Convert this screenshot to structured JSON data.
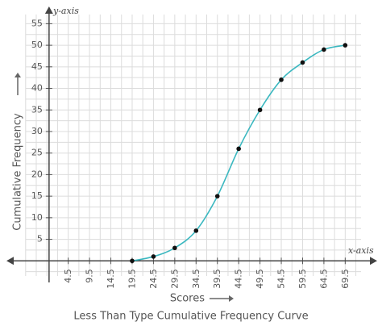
{
  "chart_data": {
    "type": "line",
    "title": "Less Than Type Cumulative Frequency Curve",
    "x_label": "Scores",
    "y_label": "Cumulative Frequency",
    "x_axis_name": "x-axis",
    "y_axis_name": "y-axis",
    "series": [
      {
        "name": "Cumulative Frequency",
        "color": "#3bb8c0",
        "x": [
          19.5,
          24.5,
          29.5,
          34.5,
          39.5,
          44.5,
          49.5,
          54.5,
          59.5,
          64.5,
          69.5
        ],
        "values": [
          0,
          1,
          3,
          7,
          15,
          26,
          35,
          42,
          46,
          49,
          50
        ]
      }
    ],
    "xlim": [
      -10,
      77
    ],
    "ylim": [
      -5,
      59
    ],
    "xticks": [
      4.5,
      9.5,
      14.5,
      19.5,
      24.5,
      29.5,
      34.5,
      39.5,
      44.5,
      49.5,
      54.5,
      59.5,
      64.5,
      69.5
    ],
    "yticks": [
      5,
      10,
      15,
      20,
      25,
      30,
      35,
      40,
      45,
      50,
      55
    ],
    "grid": true
  }
}
